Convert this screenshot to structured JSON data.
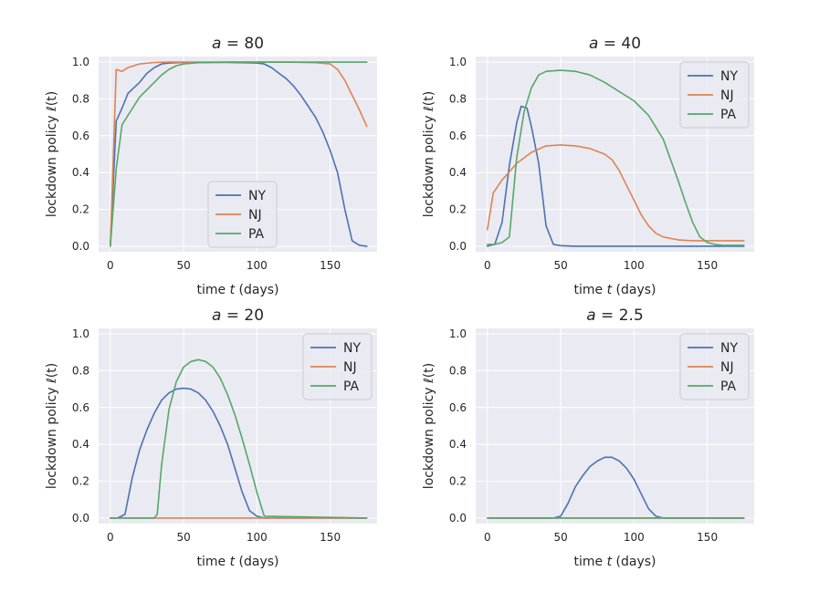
{
  "colors": {
    "NY": "#4c72b0",
    "NJ": "#dd8452",
    "PA": "#55a868"
  },
  "chart_data": [
    {
      "type": "line",
      "title_var": "a",
      "title_value": "80",
      "xlabel_pre": "time ",
      "xlabel_var": "t",
      "xlabel_post": " (days)",
      "ylabel": "lockdown policy ℓ(t)",
      "xlim": [
        -8,
        182
      ],
      "ylim": [
        -0.03,
        1.03
      ],
      "xticks": [
        0,
        50,
        100,
        150
      ],
      "yticks": [
        "0.0",
        "0.2",
        "0.4",
        "0.6",
        "0.8",
        "1.0"
      ],
      "legend": "bottom-center",
      "series": [
        {
          "name": "NY",
          "x": [
            0,
            4,
            8,
            12,
            16,
            20,
            25,
            30,
            35,
            40,
            50,
            60,
            70,
            80,
            90,
            100,
            105,
            110,
            115,
            120,
            125,
            130,
            135,
            140,
            145,
            150,
            155,
            160,
            165,
            170,
            175
          ],
          "y": [
            0.0,
            0.68,
            0.75,
            0.83,
            0.86,
            0.89,
            0.94,
            0.97,
            0.99,
            0.995,
            0.998,
            0.998,
            0.998,
            0.998,
            0.997,
            0.995,
            0.99,
            0.97,
            0.94,
            0.91,
            0.87,
            0.82,
            0.76,
            0.7,
            0.62,
            0.52,
            0.4,
            0.2,
            0.03,
            0.005,
            0.0
          ]
        },
        {
          "name": "NJ",
          "x": [
            0,
            4,
            8,
            12,
            20,
            30,
            40,
            60,
            80,
            100,
            120,
            140,
            150,
            155,
            160,
            165,
            170,
            175
          ],
          "y": [
            0.0,
            0.96,
            0.95,
            0.97,
            0.99,
            0.998,
            1.0,
            1.0,
            1.0,
            1.0,
            1.0,
            0.997,
            0.99,
            0.96,
            0.9,
            0.82,
            0.74,
            0.65
          ]
        },
        {
          "name": "PA",
          "x": [
            0,
            4,
            8,
            12,
            16,
            20,
            25,
            30,
            35,
            40,
            45,
            50,
            60,
            80,
            100,
            120,
            140,
            160,
            175
          ],
          "y": [
            0.0,
            0.42,
            0.66,
            0.71,
            0.76,
            0.81,
            0.85,
            0.89,
            0.93,
            0.96,
            0.98,
            0.99,
            0.997,
            1.0,
            1.0,
            1.0,
            1.0,
            1.0,
            1.0
          ]
        }
      ]
    },
    {
      "type": "line",
      "title_var": "a",
      "title_value": "40",
      "xlabel_pre": "time ",
      "xlabel_var": "t",
      "xlabel_post": " (days)",
      "ylabel": "lockdown policy ℓ(t)",
      "xlim": [
        -8,
        182
      ],
      "ylim": [
        -0.03,
        1.03
      ],
      "xticks": [
        0,
        50,
        100,
        150
      ],
      "yticks": [
        "0.0",
        "0.2",
        "0.4",
        "0.6",
        "0.8",
        "1.0"
      ],
      "legend": "top-right",
      "series": [
        {
          "name": "NY",
          "x": [
            0,
            5,
            10,
            15,
            20,
            23,
            27,
            30,
            35,
            40,
            45,
            50,
            60,
            100,
            175
          ],
          "y": [
            0.0,
            0.01,
            0.13,
            0.44,
            0.67,
            0.76,
            0.75,
            0.65,
            0.45,
            0.11,
            0.01,
            0.003,
            0.0,
            0.0,
            0.0
          ]
        },
        {
          "name": "NJ",
          "x": [
            0,
            4,
            10,
            20,
            30,
            40,
            50,
            60,
            70,
            80,
            85,
            90,
            95,
            100,
            105,
            110,
            115,
            120,
            130,
            140,
            150,
            175
          ],
          "y": [
            0.09,
            0.29,
            0.36,
            0.45,
            0.51,
            0.545,
            0.55,
            0.545,
            0.53,
            0.5,
            0.47,
            0.41,
            0.33,
            0.25,
            0.17,
            0.11,
            0.07,
            0.05,
            0.035,
            0.03,
            0.03,
            0.03
          ]
        },
        {
          "name": "PA",
          "x": [
            0,
            5,
            10,
            15,
            20,
            25,
            30,
            35,
            40,
            50,
            60,
            70,
            80,
            90,
            100,
            110,
            120,
            125,
            130,
            135,
            140,
            145,
            150,
            155,
            160,
            175
          ],
          "y": [
            0.01,
            0.01,
            0.02,
            0.05,
            0.48,
            0.73,
            0.86,
            0.93,
            0.95,
            0.955,
            0.95,
            0.93,
            0.89,
            0.84,
            0.79,
            0.71,
            0.58,
            0.47,
            0.36,
            0.24,
            0.13,
            0.05,
            0.02,
            0.01,
            0.005,
            0.005
          ]
        }
      ]
    },
    {
      "type": "line",
      "title_var": "a",
      "title_value": "20",
      "xlabel_pre": "time ",
      "xlabel_var": "t",
      "xlabel_post": " (days)",
      "ylabel": "lockdown policy ℓ(t)",
      "xlim": [
        -8,
        182
      ],
      "ylim": [
        -0.03,
        1.03
      ],
      "xticks": [
        0,
        50,
        100,
        150
      ],
      "yticks": [
        "0.0",
        "0.2",
        "0.4",
        "0.6",
        "0.8",
        "1.0"
      ],
      "legend": "top-right",
      "series": [
        {
          "name": "NY",
          "x": [
            0,
            5,
            10,
            15,
            20,
            25,
            30,
            35,
            40,
            45,
            50,
            55,
            60,
            65,
            70,
            75,
            80,
            85,
            90,
            95,
            100,
            105,
            175
          ],
          "y": [
            0.0,
            0.0,
            0.02,
            0.22,
            0.37,
            0.48,
            0.57,
            0.64,
            0.68,
            0.7,
            0.705,
            0.7,
            0.68,
            0.64,
            0.58,
            0.5,
            0.4,
            0.27,
            0.14,
            0.04,
            0.01,
            0.0,
            0.0
          ]
        },
        {
          "name": "NJ",
          "x": [
            0,
            175
          ],
          "y": [
            0.0,
            0.0
          ]
        },
        {
          "name": "PA",
          "x": [
            0,
            30,
            32,
            35,
            40,
            45,
            50,
            55,
            60,
            65,
            70,
            75,
            80,
            85,
            90,
            95,
            100,
            105,
            175
          ],
          "y": [
            0.0,
            0.0,
            0.02,
            0.29,
            0.59,
            0.74,
            0.82,
            0.85,
            0.86,
            0.85,
            0.82,
            0.76,
            0.67,
            0.56,
            0.43,
            0.29,
            0.14,
            0.01,
            0.0
          ]
        }
      ]
    },
    {
      "type": "line",
      "title_var": "a",
      "title_value": "2.5",
      "xlabel_pre": "time ",
      "xlabel_var": "t",
      "xlabel_post": " (days)",
      "ylabel": "lockdown policy ℓ(t)",
      "xlim": [
        -8,
        182
      ],
      "ylim": [
        -0.03,
        1.03
      ],
      "xticks": [
        0,
        50,
        100,
        150
      ],
      "yticks": [
        "0.0",
        "0.2",
        "0.4",
        "0.6",
        "0.8",
        "1.0"
      ],
      "legend": "top-right",
      "series": [
        {
          "name": "NY",
          "x": [
            0,
            45,
            50,
            55,
            60,
            65,
            70,
            75,
            80,
            85,
            90,
            95,
            100,
            105,
            110,
            115,
            120,
            175
          ],
          "y": [
            0.0,
            0.0,
            0.01,
            0.08,
            0.17,
            0.23,
            0.28,
            0.31,
            0.33,
            0.33,
            0.31,
            0.27,
            0.21,
            0.13,
            0.05,
            0.01,
            0.0,
            0.0
          ]
        },
        {
          "name": "NJ",
          "x": [
            0,
            175
          ],
          "y": [
            0.0,
            0.0
          ]
        },
        {
          "name": "PA",
          "x": [
            0,
            175
          ],
          "y": [
            0.0,
            0.0
          ]
        }
      ]
    }
  ]
}
